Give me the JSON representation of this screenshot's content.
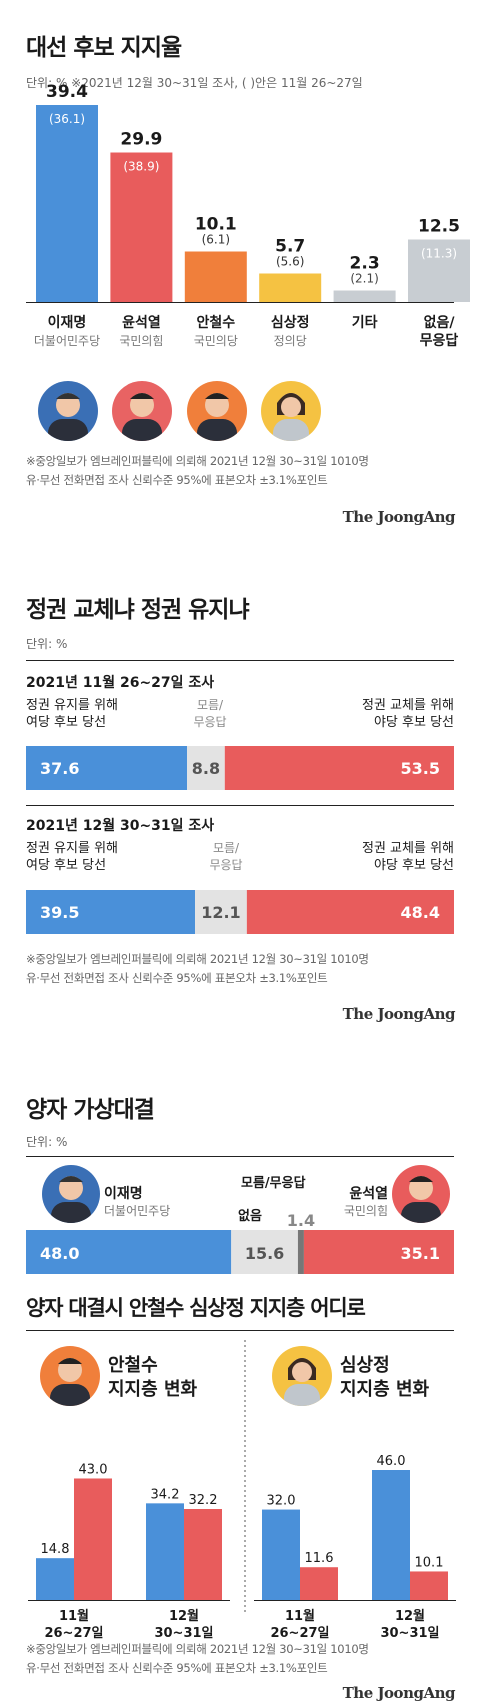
{
  "colors": {
    "blue": "#4a90d9",
    "red": "#e85c5c",
    "orange": "#f07f3b",
    "yellow": "#f5c242",
    "gray": "#c8cdd2",
    "lightgray": "#e3e3e3",
    "darkgray": "#777777"
  },
  "brand": "The JoongAng",
  "s1": {
    "title": "대선 후보 지지율",
    "unit": "단위: %  ※2021년 12월 30~31일 조사, ( )안은 11월 26~27일",
    "chart_data": {
      "type": "bar",
      "categories": [
        "이재명",
        "윤석열",
        "안철수",
        "심상정",
        "기타",
        "없음/ 무응답"
      ],
      "series": [
        {
          "values": [
            39.4,
            29.9,
            10.1,
            5.7,
            2.3,
            12.5
          ]
        },
        {
          "values": [
            36.1,
            38.9,
            6.1,
            5.6,
            2.1,
            11.3
          ]
        }
      ],
      "ylim": [
        0,
        40
      ]
    },
    "values_text": [
      "39.4",
      "29.9",
      "10.1",
      "5.7",
      "2.3",
      "12.5"
    ],
    "prev_text": [
      "(36.1)",
      "(38.9)",
      "(6.1)",
      "(5.6)",
      "(2.1)",
      "(11.3)"
    ],
    "names": [
      "이재명",
      "윤석열",
      "안철수",
      "심상정",
      "기타",
      "없음/"
    ],
    "name2": [
      "",
      "",
      "",
      "",
      "",
      "무응답"
    ],
    "parties": [
      "더불어민주당",
      "국민의힘",
      "국민의당",
      "정의당",
      "",
      ""
    ],
    "note1": "※중앙일보가 엠브레인퍼블릭에 의뢰해 2021년 12월 30~31일 1010명",
    "note2": "유·무선 전화면접 조사 신뢰수준 95%에 표본오차 ±3.1%포인트"
  },
  "s2": {
    "title": "정권 교체냐 정권 유지냐",
    "unit": "단위: %",
    "chart_data": {
      "type": "bar",
      "categories": [
        "2021년 11월 26~27일 조사",
        "2021년 12월 30~31일 조사"
      ],
      "series": [
        {
          "name": "정권 유지를 위해 여당 후보 당선",
          "values": [
            37.6,
            39.5
          ]
        },
        {
          "name": "모름/ 무응답",
          "values": [
            8.8,
            12.1
          ]
        },
        {
          "name": "정권 교체를 위해 야당 후보 당선",
          "values": [
            53.5,
            48.4
          ]
        }
      ]
    },
    "surveys": [
      {
        "title": "2021년 11월 26~27일 조사",
        "vals": [
          "37.6",
          "8.8",
          "53.5"
        ]
      },
      {
        "title": "2021년 12월 30~31일 조사",
        "vals": [
          "39.5",
          "12.1",
          "48.4"
        ]
      }
    ],
    "left1": "정권 유지를 위해",
    "left2": "여당 후보 당선",
    "mid1": "모름/",
    "mid2": "무응답",
    "right1": "정권 교체를 위해",
    "right2": "야당 후보 당선",
    "note1": "※중앙일보가 엠브레인퍼블릭에 의뢰해 2021년 12월 30~31일 1010명",
    "note2": "유·무선 전화면접 조사 신뢰수준 95%에 표본오차 ±3.1%포인트"
  },
  "s3": {
    "title": "양자 가상대결",
    "unit": "단위: %",
    "chart_data": {
      "type": "bar",
      "categories": [
        "이재명",
        "없음",
        "모름/무응답",
        "윤석열"
      ],
      "values": [
        48.0,
        15.6,
        1.4,
        35.1
      ]
    },
    "vals": [
      "48.0",
      "15.6",
      "1.4",
      "35.1"
    ],
    "left_name": "이재명",
    "left_party": "더불어민주당",
    "right_name": "윤석열",
    "right_party": "국민의힘",
    "none_label": "없음",
    "dk_label": "모름/무응답"
  },
  "s4": {
    "title": "양자 대결시 안철수 심상정 지지층 어디로",
    "ahn_title1": "안철수",
    "ahn_title2": "지지층 변화",
    "shim_title1": "심상정",
    "shim_title2": "지지층 변화",
    "chart_data": [
      {
        "type": "bar",
        "categories": [
          "11월 26~27일",
          "12월 30~31일"
        ],
        "series": [
          {
            "values": [
              14.8,
              34.2
            ]
          },
          {
            "values": [
              43.0,
              32.2
            ]
          }
        ]
      },
      {
        "type": "bar",
        "categories": [
          "11월 26~27일",
          "12월 30~31일"
        ],
        "series": [
          {
            "values": [
              32.0,
              46.0
            ]
          },
          {
            "values": [
              11.6,
              10.1
            ]
          }
        ]
      }
    ],
    "ahn_vals": [
      "14.8",
      "43.0",
      "34.2",
      "32.2"
    ],
    "shim_vals": [
      "32.0",
      "11.6",
      "46.0",
      "10.1"
    ],
    "cat1a": "11월",
    "cat1b": "26~27일",
    "cat2a": "12월",
    "cat2b": "30~31일",
    "note1": "※중앙일보가 엠브레인퍼블릭에 의뢰해 2021년 12월 30~31일 1010명",
    "note2": "유·무선 전화면접 조사 신뢰수준 95%에 표본오차 ±3.1%포인트"
  }
}
